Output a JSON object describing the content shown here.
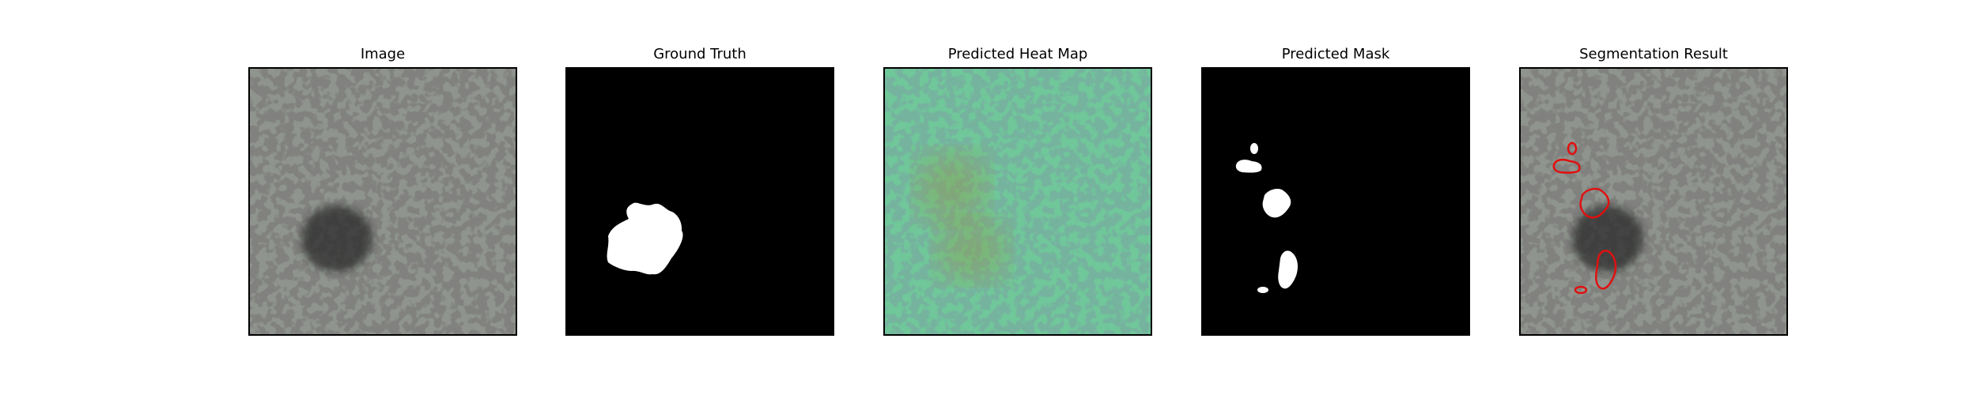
{
  "panels": [
    {
      "title": "Image"
    },
    {
      "title": "Ground Truth"
    },
    {
      "title": "Predicted Heat Map"
    },
    {
      "title": "Predicted Mask"
    },
    {
      "title": "Segmentation Result"
    }
  ],
  "colors": {
    "texture_base": "#8f958e",
    "texture_spot": "#3a3a38",
    "defect": "#2b2c2c",
    "mask_fg": "#ffffff",
    "mask_bg": "#000000",
    "heat_overlay": "#3fc98a",
    "heat_hot": "#9a8a2a",
    "contour": "#e01010"
  }
}
